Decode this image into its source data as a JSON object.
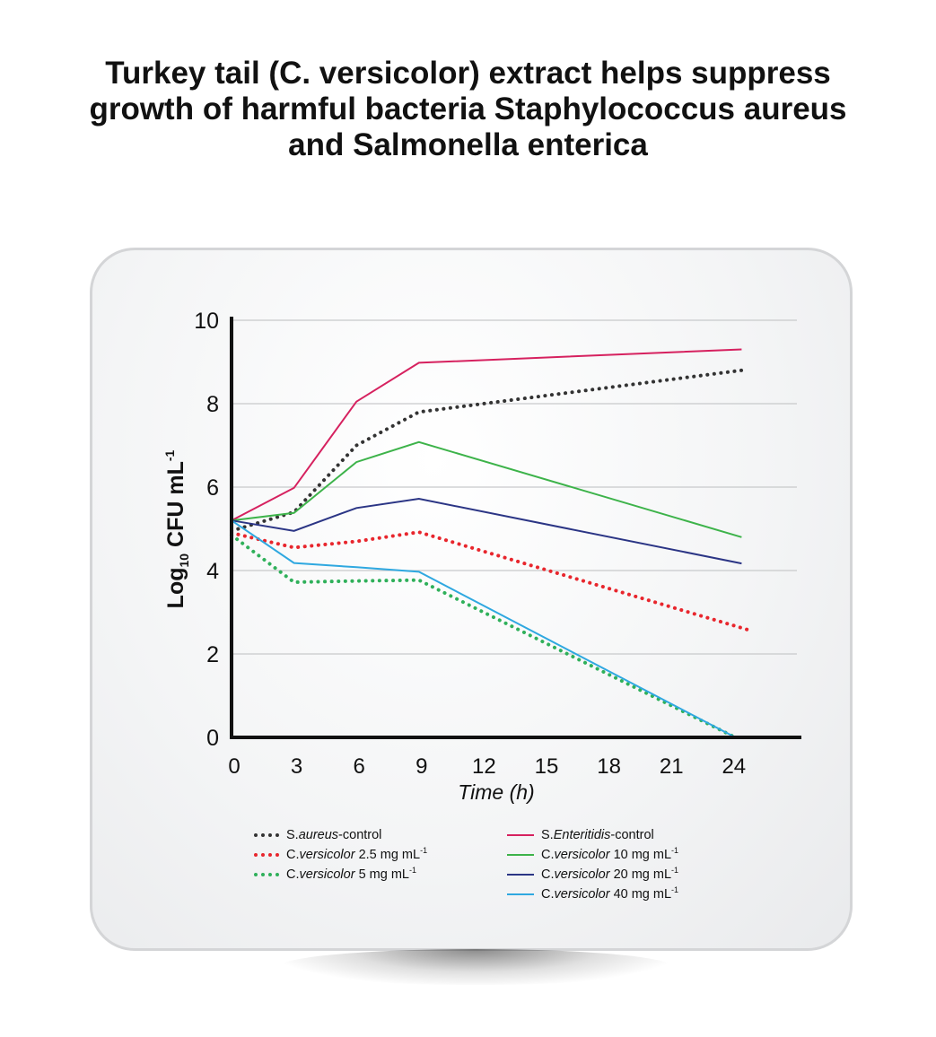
{
  "title": "Turkey tail (C. versicolor) extract helps suppress growth of harmful bacteria Staphylococcus aureus and Salmonella enterica",
  "chart_data": {
    "type": "line",
    "xlabel": "Time (h)",
    "ylabel_main": "Log",
    "ylabel_sub": "10",
    "ylabel_rest": " CFU mL",
    "ylabel_sup": "-1",
    "x_ticks": [
      0,
      3,
      6,
      9,
      12,
      15,
      18,
      21,
      24
    ],
    "y_ticks": [
      0,
      2,
      4,
      6,
      8,
      10
    ],
    "xlim": [
      0,
      27
    ],
    "ylim": [
      0,
      10
    ],
    "grid": "horizontal",
    "series": [
      {
        "name": "S.aureus-control",
        "color": "#333333",
        "style": "dotted",
        "points": [
          [
            0,
            4.95
          ],
          [
            3,
            5.4
          ],
          [
            6,
            7.0
          ],
          [
            9,
            7.8
          ],
          [
            24.5,
            8.8
          ]
        ]
      },
      {
        "name": "C.versicolor 2.5 mg mL-1",
        "color": "#e8262d",
        "style": "dotted",
        "points": [
          [
            0,
            4.9
          ],
          [
            3,
            4.55
          ],
          [
            6,
            4.7
          ],
          [
            9,
            4.92
          ],
          [
            25,
            2.55
          ]
        ]
      },
      {
        "name": "C.versicolor 5 mg mL-1",
        "color": "#2fb05a",
        "style": "dotted",
        "points": [
          [
            0,
            4.85
          ],
          [
            3,
            3.72
          ],
          [
            6,
            3.75
          ],
          [
            9,
            3.77
          ],
          [
            24.2,
            0.0
          ]
        ]
      },
      {
        "name": "S.Enteritidis-control",
        "color": "#d6215f",
        "style": "solid",
        "points": [
          [
            0,
            5.2
          ],
          [
            3,
            5.98
          ],
          [
            6,
            8.05
          ],
          [
            9,
            8.98
          ],
          [
            24.5,
            9.3
          ]
        ]
      },
      {
        "name": "C.versicolor 10 mg mL-1",
        "color": "#3db34a",
        "style": "solid",
        "points": [
          [
            0,
            5.2
          ],
          [
            3,
            5.38
          ],
          [
            6,
            6.6
          ],
          [
            9,
            7.08
          ],
          [
            24.5,
            4.8
          ]
        ]
      },
      {
        "name": "C.versicolor 20 mg mL-1",
        "color": "#2b3585",
        "style": "solid",
        "points": [
          [
            0,
            5.2
          ],
          [
            3,
            4.95
          ],
          [
            6,
            5.5
          ],
          [
            9,
            5.72
          ],
          [
            24.5,
            4.17
          ]
        ]
      },
      {
        "name": "C.versicolor 40 mg mL-1",
        "color": "#2fa8e0",
        "style": "solid",
        "points": [
          [
            0,
            5.2
          ],
          [
            3,
            4.18
          ],
          [
            6,
            4.08
          ],
          [
            9,
            3.97
          ],
          [
            24.2,
            0.0
          ]
        ]
      }
    ]
  },
  "legend": {
    "left": [
      {
        "prefix": "S.",
        "italic": "aureus",
        "suffix": "-control",
        "sup": "",
        "color": "#333333",
        "style": "dotted"
      },
      {
        "prefix": "C.",
        "italic": "versicolor",
        "suffix": " 2.5 mg mL",
        "sup": "-1",
        "color": "#e8262d",
        "style": "dotted"
      },
      {
        "prefix": "C.",
        "italic": "versicolor",
        "suffix": " 5 mg mL",
        "sup": "-1",
        "color": "#2fb05a",
        "style": "dotted"
      }
    ],
    "right": [
      {
        "prefix": "S.",
        "italic": "Enteritidis",
        "suffix": "-control",
        "sup": "",
        "color": "#d6215f",
        "style": "solid"
      },
      {
        "prefix": "C.",
        "italic": "versicolor",
        "suffix": " 10 mg mL",
        "sup": "-1",
        "color": "#3db34a",
        "style": "solid"
      },
      {
        "prefix": "C.",
        "italic": "versicolor",
        "suffix": " 20 mg mL",
        "sup": "-1",
        "color": "#2b3585",
        "style": "solid"
      },
      {
        "prefix": "C.",
        "italic": "versicolor",
        "suffix": " 40 mg mL",
        "sup": "-1",
        "color": "#2fa8e0",
        "style": "solid"
      }
    ]
  }
}
